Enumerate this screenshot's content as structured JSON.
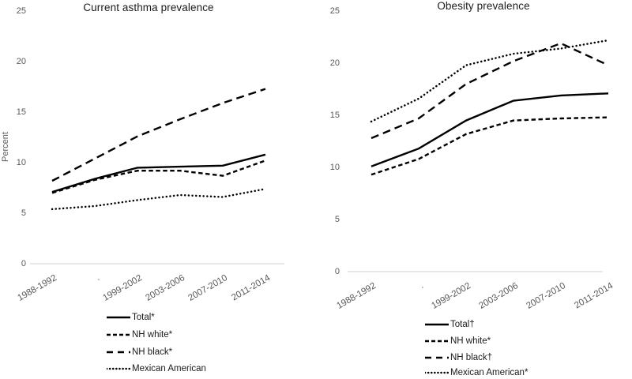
{
  "colors": {
    "line": "#000000",
    "tick_label": "#595959",
    "axis_line": "#d9d9d9",
    "title": "#1a1a1a",
    "legend_text": "#1a1a1a",
    "background": "#ffffff"
  },
  "chart_data": [
    {
      "type": "line",
      "title": "Current asthma prevalence",
      "ylabel": "Percent",
      "xlabel": "",
      "categories": [
        "1988-1992",
        ".",
        "1999-2002",
        "2003-2006",
        "2007-2010",
        "2011-2014"
      ],
      "yticks": [
        0,
        5,
        10,
        15,
        20,
        25
      ],
      "ylim": [
        0,
        25
      ],
      "grid": false,
      "legend_position": "bottom",
      "series": [
        {
          "name": "Total*",
          "style": "solid",
          "values": [
            7.1,
            8.4,
            9.5,
            9.6,
            9.7,
            10.8
          ]
        },
        {
          "name": "NH white*",
          "style": "short-dash",
          "values": [
            7.0,
            8.3,
            9.2,
            9.2,
            8.7,
            10.2
          ]
        },
        {
          "name": "NH black*",
          "style": "long-dash",
          "values": [
            8.2,
            10.4,
            12.6,
            14.3,
            15.9,
            17.3
          ]
        },
        {
          "name": "Mexican American",
          "style": "dotted",
          "values": [
            5.4,
            5.7,
            6.3,
            6.8,
            6.6,
            7.4
          ]
        }
      ]
    },
    {
      "type": "line",
      "title": "Obesity prevalence",
      "ylabel": "",
      "xlabel": "",
      "categories": [
        "1988-1992",
        ".",
        "1999-2002",
        "2003-2006",
        "2007-2010",
        "2011-2014"
      ],
      "yticks": [
        0,
        5,
        10,
        15,
        20,
        25
      ],
      "ylim": [
        0,
        25
      ],
      "grid": false,
      "legend_position": "bottom",
      "series": [
        {
          "name": "Total†",
          "style": "solid",
          "values": [
            10.1,
            11.8,
            14.5,
            16.4,
            16.9,
            17.1
          ]
        },
        {
          "name": "NH white*",
          "style": "short-dash",
          "values": [
            9.3,
            10.8,
            13.2,
            14.5,
            14.7,
            14.8
          ]
        },
        {
          "name": "NH black†",
          "style": "long-dash",
          "values": [
            12.8,
            14.7,
            18.0,
            20.2,
            21.9,
            19.8
          ]
        },
        {
          "name": "Mexican American*",
          "style": "dotted",
          "values": [
            14.4,
            16.6,
            19.8,
            20.9,
            21.4,
            22.2
          ]
        }
      ]
    }
  ]
}
